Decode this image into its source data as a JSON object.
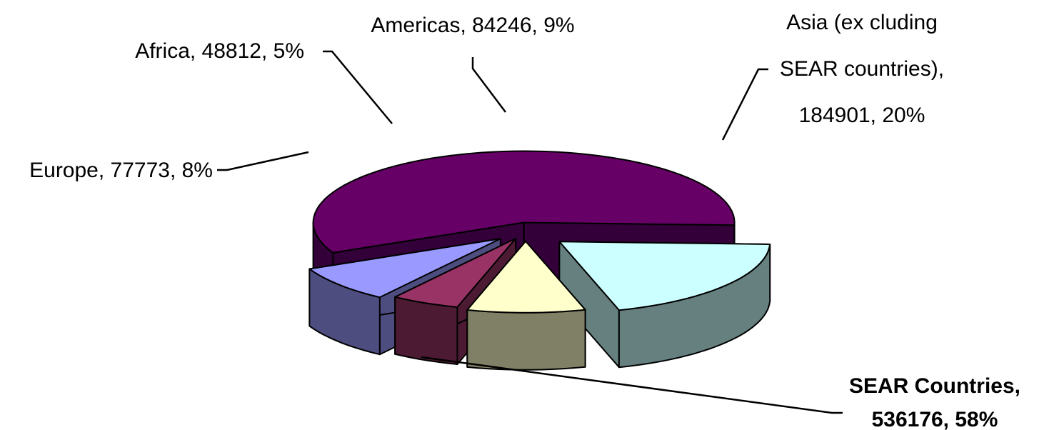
{
  "chart_data": {
    "type": "pie",
    "style": "3d-exploded",
    "series": [
      {
        "name": "SEAR Countries",
        "value": 536176,
        "percent": "58%",
        "label_line1": "SEAR Countries,",
        "label_line2": "536176, 58%",
        "bold": true,
        "top_color": "#660066",
        "side_color": "#33003A"
      },
      {
        "name": "Asia (excluding SEAR countries)",
        "value": 184901,
        "percent": "20%",
        "label_line1": "Asia (ex cluding",
        "label_line2": "SEAR countries),",
        "label_line3": "184901, 20%",
        "bold": false,
        "top_color": "#CCFFFF",
        "side_color": "#668080"
      },
      {
        "name": "Americas",
        "value": 84246,
        "percent": "9%",
        "label_line1": "Americas, 84246, 9%",
        "bold": false,
        "top_color": "#FFFFCC",
        "side_color": "#808066"
      },
      {
        "name": "Africa",
        "value": 48812,
        "percent": "5%",
        "label_line1": "Africa, 48812, 5%",
        "bold": false,
        "top_color": "#993366",
        "side_color": "#4D1A33"
      },
      {
        "name": "Europe",
        "value": 77773,
        "percent": "8%",
        "label_line1": "Europe, 77773, 8%",
        "bold": false,
        "top_color": "#9999FF",
        "side_color": "#4D4D80"
      }
    ]
  }
}
